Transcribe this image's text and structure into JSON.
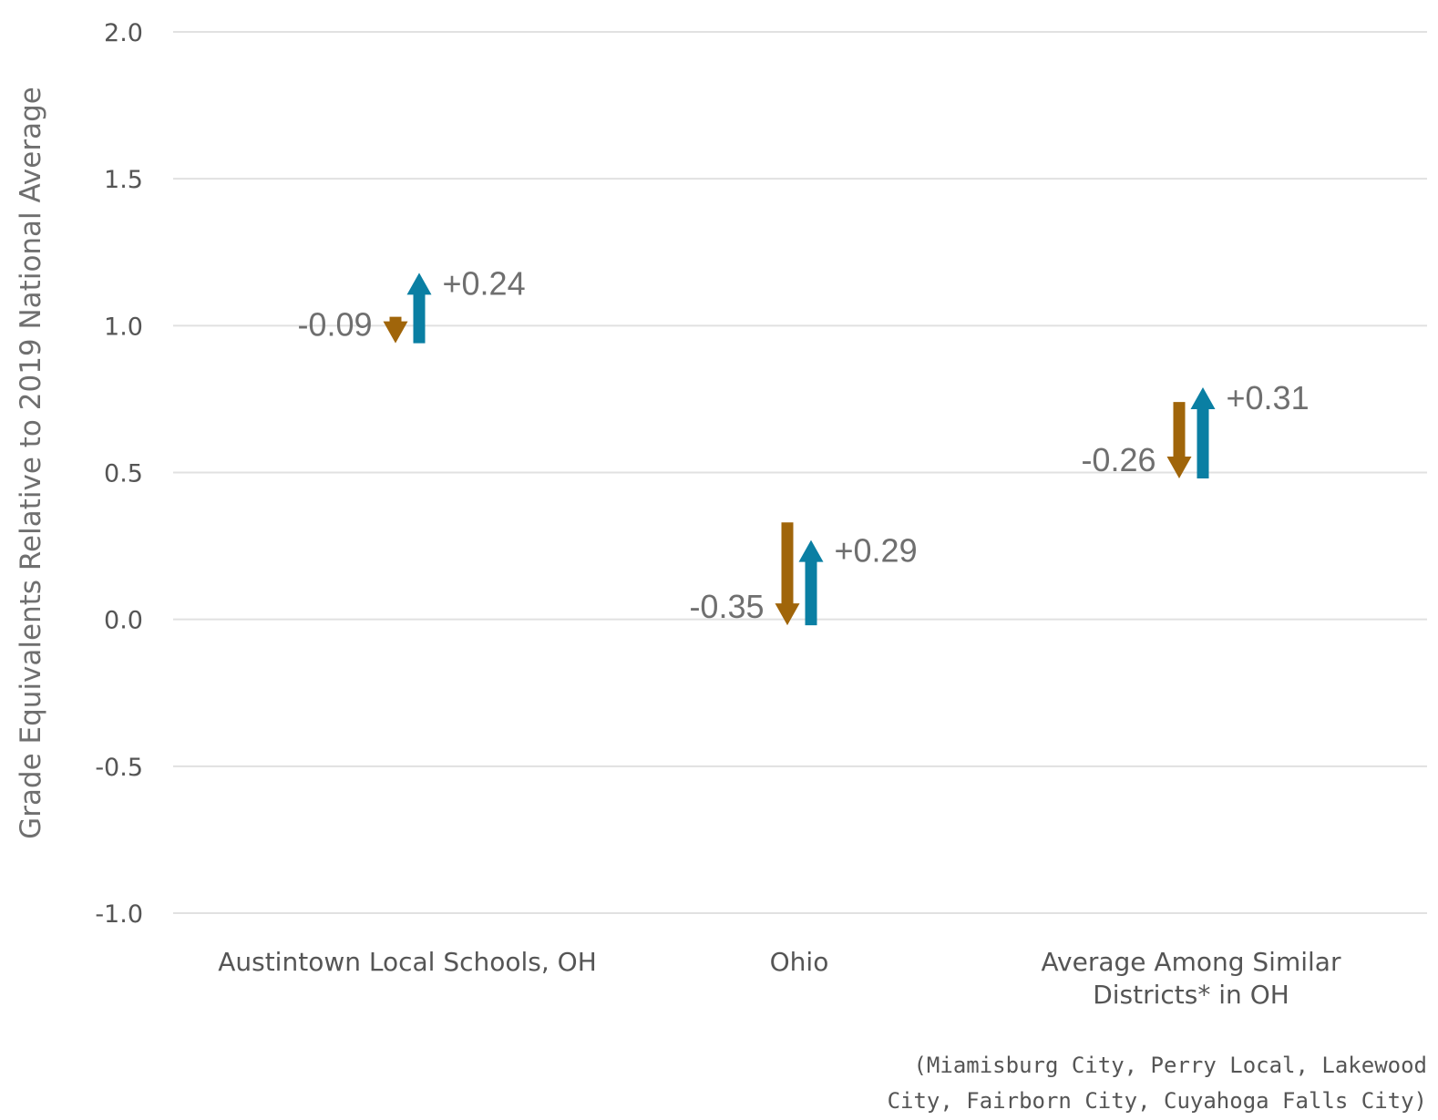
{
  "chart_data": {
    "type": "arrow",
    "ylabel": "Grade Equivalents Relative to 2019 National Average",
    "ylim": [
      -1.0,
      2.0
    ],
    "yticks": [
      2.0,
      1.5,
      1.0,
      0.5,
      0.0,
      -0.5,
      -1.0
    ],
    "ytick_labels": [
      "2.0",
      "1.5",
      "1.0",
      "0.5",
      "0.0",
      "-0.5",
      "-1.0"
    ],
    "grid": true,
    "categories": [
      [
        "Austintown Local Schools, OH"
      ],
      [
        "Ohio"
      ],
      [
        "Average Among Similar",
        "Districts* in OH"
      ]
    ],
    "series": [
      {
        "color": "#a0650a",
        "direction": "down",
        "start": [
          1.03,
          0.33,
          0.74
        ],
        "end": [
          0.94,
          -0.02,
          0.48
        ],
        "labels": [
          "-0.09",
          "-0.35",
          "-0.26"
        ]
      },
      {
        "color": "#0a7fa3",
        "direction": "up",
        "start": [
          0.94,
          -0.02,
          0.48
        ],
        "end": [
          1.18,
          0.27,
          0.79
        ],
        "labels": [
          "+0.24",
          "+0.29",
          "+0.31"
        ]
      }
    ],
    "note": [
      "(Miamisburg City, Perry Local, Lakewood",
      "City, Fairborn City, Cuyahoga Falls City)"
    ]
  }
}
